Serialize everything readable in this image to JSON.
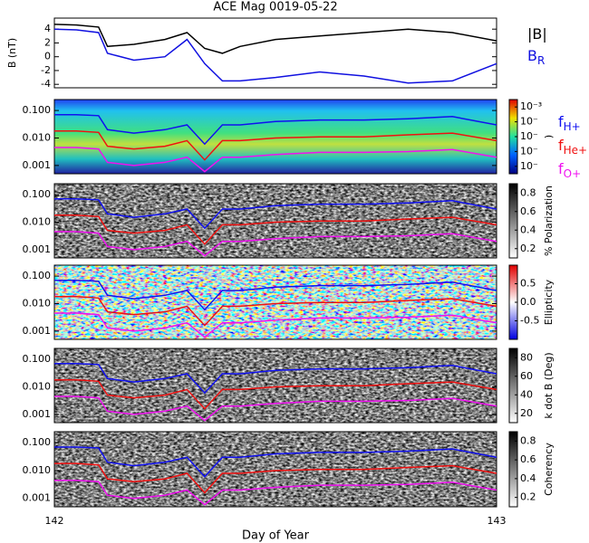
{
  "title": "ACE Mag 0019-05-22",
  "x_label": "Day of Year",
  "chart_data": [
    {
      "type": "line",
      "y_label": "B (nT)",
      "xlim": [
        142,
        143
      ],
      "ylim": [
        -4.5,
        5.6
      ],
      "yticks": [
        -4,
        -2,
        0,
        2,
        4
      ],
      "x": [
        142.0,
        142.05,
        142.1,
        142.12,
        142.18,
        142.25,
        142.3,
        142.34,
        142.38,
        142.42,
        142.5,
        142.6,
        142.7,
        142.8,
        142.9,
        143.0
      ],
      "series": [
        {
          "name": "|B|",
          "color": "#000000",
          "values": [
            4.7,
            4.6,
            4.3,
            1.5,
            1.8,
            2.5,
            3.5,
            1.2,
            0.5,
            1.5,
            2.5,
            3.0,
            3.5,
            4.0,
            3.5,
            2.3
          ]
        },
        {
          "name": "B",
          "sub": "R",
          "color": "#1010e0",
          "values": [
            4.0,
            3.9,
            3.5,
            0.5,
            -0.5,
            0,
            2.5,
            -1.0,
            -3.5,
            -3.5,
            -3.0,
            -2.2,
            -2.8,
            -3.8,
            -3.5,
            -1.0
          ]
        }
      ]
    },
    {
      "type": "spectrogram",
      "log": true,
      "scale": "jet",
      "cbar_label": ")",
      "cbar_lim": [
        -7.5,
        -2.5
      ],
      "cbar_ticks": [
        {
          "value": -3,
          "label": "10⁻³"
        },
        {
          "value": -4,
          "label": "10⁻"
        },
        {
          "value": -5,
          "label": "10⁻"
        },
        {
          "value": -6,
          "label": "10⁻"
        },
        {
          "value": -7,
          "label": "10⁻"
        }
      ],
      "legend": true,
      "xlim": [
        142,
        143
      ],
      "ylim": [
        0.0005,
        0.25
      ],
      "yticks": [
        {
          "value": 0.001,
          "label": "0.001"
        },
        {
          "value": 0.01,
          "label": "0.010"
        },
        {
          "value": 0.1,
          "label": "0.100"
        }
      ],
      "x": [
        142.0,
        142.05,
        142.1,
        142.12,
        142.18,
        142.25,
        142.3,
        142.34,
        142.38,
        142.42,
        142.5,
        142.6,
        142.7,
        142.8,
        142.9,
        143.0
      ],
      "series": [
        {
          "name": "f",
          "sub": "H+",
          "color": "#1010f0",
          "values": [
            0.07,
            0.07,
            0.065,
            0.02,
            0.015,
            0.02,
            0.03,
            0.006,
            0.03,
            0.03,
            0.04,
            0.045,
            0.045,
            0.05,
            0.06,
            0.03
          ]
        },
        {
          "name": "f",
          "sub": "He+",
          "color": "#f01010",
          "values": [
            0.018,
            0.018,
            0.016,
            0.005,
            0.004,
            0.005,
            0.008,
            0.0016,
            0.008,
            0.008,
            0.01,
            0.011,
            0.011,
            0.013,
            0.015,
            0.008
          ]
        },
        {
          "name": "f",
          "sub": "O+",
          "color": "#f010f0",
          "values": [
            0.0045,
            0.0045,
            0.004,
            0.0013,
            0.001,
            0.0013,
            0.002,
            0.0006,
            0.002,
            0.002,
            0.0025,
            0.003,
            0.003,
            0.0032,
            0.0038,
            0.002
          ]
        }
      ]
    },
    {
      "type": "spectrogram",
      "log": true,
      "scale": "gray",
      "cbar_label": "% Polarization",
      "cbar_lim": [
        0.1,
        0.9
      ],
      "cbar_ticks": [
        0.2,
        0.4,
        0.6,
        0.8
      ],
      "xlim": [
        142,
        143
      ],
      "ylim": [
        0.0005,
        0.25
      ],
      "yticks": [
        {
          "value": 0.001,
          "label": "0.001"
        },
        {
          "value": 0.01,
          "label": "0.010"
        },
        {
          "value": 0.1,
          "label": "0.100"
        }
      ],
      "x": [
        142.0,
        142.05,
        142.1,
        142.12,
        142.18,
        142.25,
        142.3,
        142.34,
        142.38,
        142.42,
        142.5,
        142.6,
        142.7,
        142.8,
        142.9,
        143.0
      ],
      "series": [
        {
          "color": "#1010f0",
          "values": [
            0.07,
            0.07,
            0.065,
            0.02,
            0.015,
            0.02,
            0.03,
            0.006,
            0.03,
            0.03,
            0.04,
            0.045,
            0.045,
            0.05,
            0.06,
            0.03
          ]
        },
        {
          "color": "#f01010",
          "values": [
            0.018,
            0.018,
            0.016,
            0.005,
            0.004,
            0.005,
            0.008,
            0.0016,
            0.008,
            0.008,
            0.01,
            0.011,
            0.011,
            0.013,
            0.015,
            0.008
          ]
        },
        {
          "color": "#f010f0",
          "values": [
            0.0045,
            0.0045,
            0.004,
            0.0013,
            0.001,
            0.0013,
            0.002,
            0.0006,
            0.002,
            0.002,
            0.0025,
            0.003,
            0.003,
            0.0032,
            0.0038,
            0.002
          ]
        }
      ]
    },
    {
      "type": "spectrogram",
      "log": true,
      "scale": "diverging",
      "cbar_label": "Ellipticity",
      "cbar_lim": [
        -1,
        1
      ],
      "cbar_ticks": [
        -0.5,
        {
          "value": 0,
          "label": "0.0"
        },
        0.5
      ],
      "xlim": [
        142,
        143
      ],
      "ylim": [
        0.0005,
        0.25
      ],
      "yticks": [
        {
          "value": 0.001,
          "label": "0.001"
        },
        {
          "value": 0.01,
          "label": "0.010"
        },
        {
          "value": 0.1,
          "label": "0.100"
        }
      ],
      "x": [
        142.0,
        142.05,
        142.1,
        142.12,
        142.18,
        142.25,
        142.3,
        142.34,
        142.38,
        142.42,
        142.5,
        142.6,
        142.7,
        142.8,
        142.9,
        143.0
      ],
      "series": [
        {
          "color": "#1010f0",
          "values": [
            0.07,
            0.07,
            0.065,
            0.02,
            0.015,
            0.02,
            0.03,
            0.006,
            0.03,
            0.03,
            0.04,
            0.045,
            0.045,
            0.05,
            0.06,
            0.03
          ]
        },
        {
          "color": "#f01010",
          "values": [
            0.018,
            0.018,
            0.016,
            0.005,
            0.004,
            0.005,
            0.008,
            0.0016,
            0.008,
            0.008,
            0.01,
            0.011,
            0.011,
            0.013,
            0.015,
            0.008
          ]
        },
        {
          "color": "#f010f0",
          "values": [
            0.0045,
            0.0045,
            0.004,
            0.0013,
            0.001,
            0.0013,
            0.002,
            0.0006,
            0.002,
            0.002,
            0.0025,
            0.003,
            0.003,
            0.0032,
            0.0038,
            0.002
          ]
        }
      ]
    },
    {
      "type": "spectrogram",
      "log": true,
      "scale": "gray",
      "cbar_label": "k dot B (Deg)",
      "cbar_lim": [
        10,
        90
      ],
      "cbar_ticks": [
        20,
        40,
        60,
        80
      ],
      "xlim": [
        142,
        143
      ],
      "ylim": [
        0.0005,
        0.25
      ],
      "yticks": [
        {
          "value": 0.001,
          "label": "0.001"
        },
        {
          "value": 0.01,
          "label": "0.010"
        },
        {
          "value": 0.1,
          "label": "0.100"
        }
      ],
      "x": [
        142.0,
        142.05,
        142.1,
        142.12,
        142.18,
        142.25,
        142.3,
        142.34,
        142.38,
        142.42,
        142.5,
        142.6,
        142.7,
        142.8,
        142.9,
        143.0
      ],
      "series": [
        {
          "color": "#1010f0",
          "values": [
            0.07,
            0.07,
            0.065,
            0.02,
            0.015,
            0.02,
            0.03,
            0.006,
            0.03,
            0.03,
            0.04,
            0.045,
            0.045,
            0.05,
            0.06,
            0.03
          ]
        },
        {
          "color": "#f01010",
          "values": [
            0.018,
            0.018,
            0.016,
            0.005,
            0.004,
            0.005,
            0.008,
            0.0016,
            0.008,
            0.008,
            0.01,
            0.011,
            0.011,
            0.013,
            0.015,
            0.008
          ]
        },
        {
          "color": "#f010f0",
          "values": [
            0.0045,
            0.0045,
            0.004,
            0.0013,
            0.001,
            0.0013,
            0.002,
            0.0006,
            0.002,
            0.002,
            0.0025,
            0.003,
            0.003,
            0.0032,
            0.0038,
            0.002
          ]
        }
      ]
    },
    {
      "type": "spectrogram",
      "log": true,
      "scale": "gray",
      "cbar_label": "Coherency",
      "cbar_lim": [
        0.1,
        0.9
      ],
      "cbar_ticks": [
        0.2,
        0.4,
        0.6,
        0.8
      ],
      "xlim": [
        142,
        143
      ],
      "xticks": [
        142,
        143
      ],
      "ylim": [
        0.0005,
        0.25
      ],
      "yticks": [
        {
          "value": 0.001,
          "label": "0.001"
        },
        {
          "value": 0.01,
          "label": "0.010"
        },
        {
          "value": 0.1,
          "label": "0.100"
        }
      ],
      "x": [
        142.0,
        142.05,
        142.1,
        142.12,
        142.18,
        142.25,
        142.3,
        142.34,
        142.38,
        142.42,
        142.5,
        142.6,
        142.7,
        142.8,
        142.9,
        143.0
      ],
      "series": [
        {
          "color": "#1010f0",
          "values": [
            0.07,
            0.07,
            0.065,
            0.02,
            0.015,
            0.02,
            0.03,
            0.006,
            0.03,
            0.03,
            0.04,
            0.045,
            0.045,
            0.05,
            0.06,
            0.03
          ]
        },
        {
          "color": "#f01010",
          "values": [
            0.018,
            0.018,
            0.016,
            0.005,
            0.004,
            0.005,
            0.008,
            0.0016,
            0.008,
            0.008,
            0.01,
            0.011,
            0.011,
            0.013,
            0.015,
            0.008
          ]
        },
        {
          "color": "#f010f0",
          "values": [
            0.0045,
            0.0045,
            0.004,
            0.0013,
            0.001,
            0.0013,
            0.002,
            0.0006,
            0.002,
            0.002,
            0.0025,
            0.003,
            0.003,
            0.0032,
            0.0038,
            0.002
          ]
        }
      ]
    }
  ]
}
